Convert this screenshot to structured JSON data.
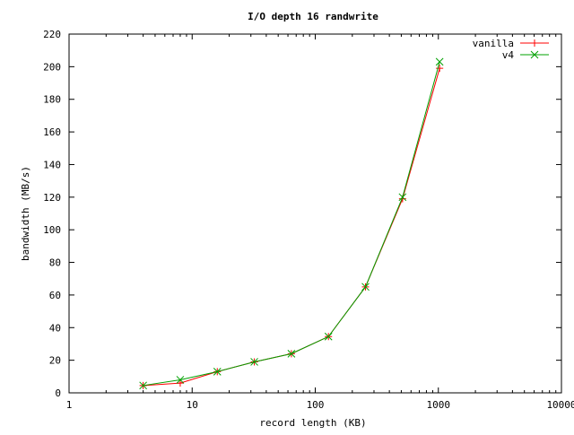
{
  "chart_data": {
    "type": "line",
    "title": "I/O depth 16 randwrite",
    "xlabel": "record length (KB)",
    "ylabel": "bandwidth (MB/s)",
    "xscale": "log",
    "xlim": [
      1,
      10000
    ],
    "ylim": [
      0,
      220
    ],
    "xticks": [
      1,
      10,
      100,
      1000,
      10000
    ],
    "xtick_labels": [
      "1",
      "10",
      "100",
      "1000",
      "10000"
    ],
    "yticks": [
      0,
      20,
      40,
      60,
      80,
      100,
      120,
      140,
      160,
      180,
      200,
      220
    ],
    "ytick_labels": [
      "0",
      "20",
      "40",
      "60",
      "80",
      "100",
      "120",
      "140",
      "160",
      "180",
      "200",
      "220"
    ],
    "grid": false,
    "legend_position": "top-right",
    "x": [
      4,
      8,
      16,
      32,
      64,
      128,
      256,
      512,
      1024
    ],
    "series": [
      {
        "name": "vanilla",
        "color": "#ff0000",
        "marker": "plus",
        "values": [
          4.5,
          6,
          13,
          19,
          24,
          34.5,
          65,
          119,
          199
        ]
      },
      {
        "name": "v4",
        "color": "#00a000",
        "marker": "cross",
        "values": [
          4.5,
          8,
          13,
          19,
          24,
          34.5,
          65,
          120,
          203
        ]
      }
    ]
  }
}
